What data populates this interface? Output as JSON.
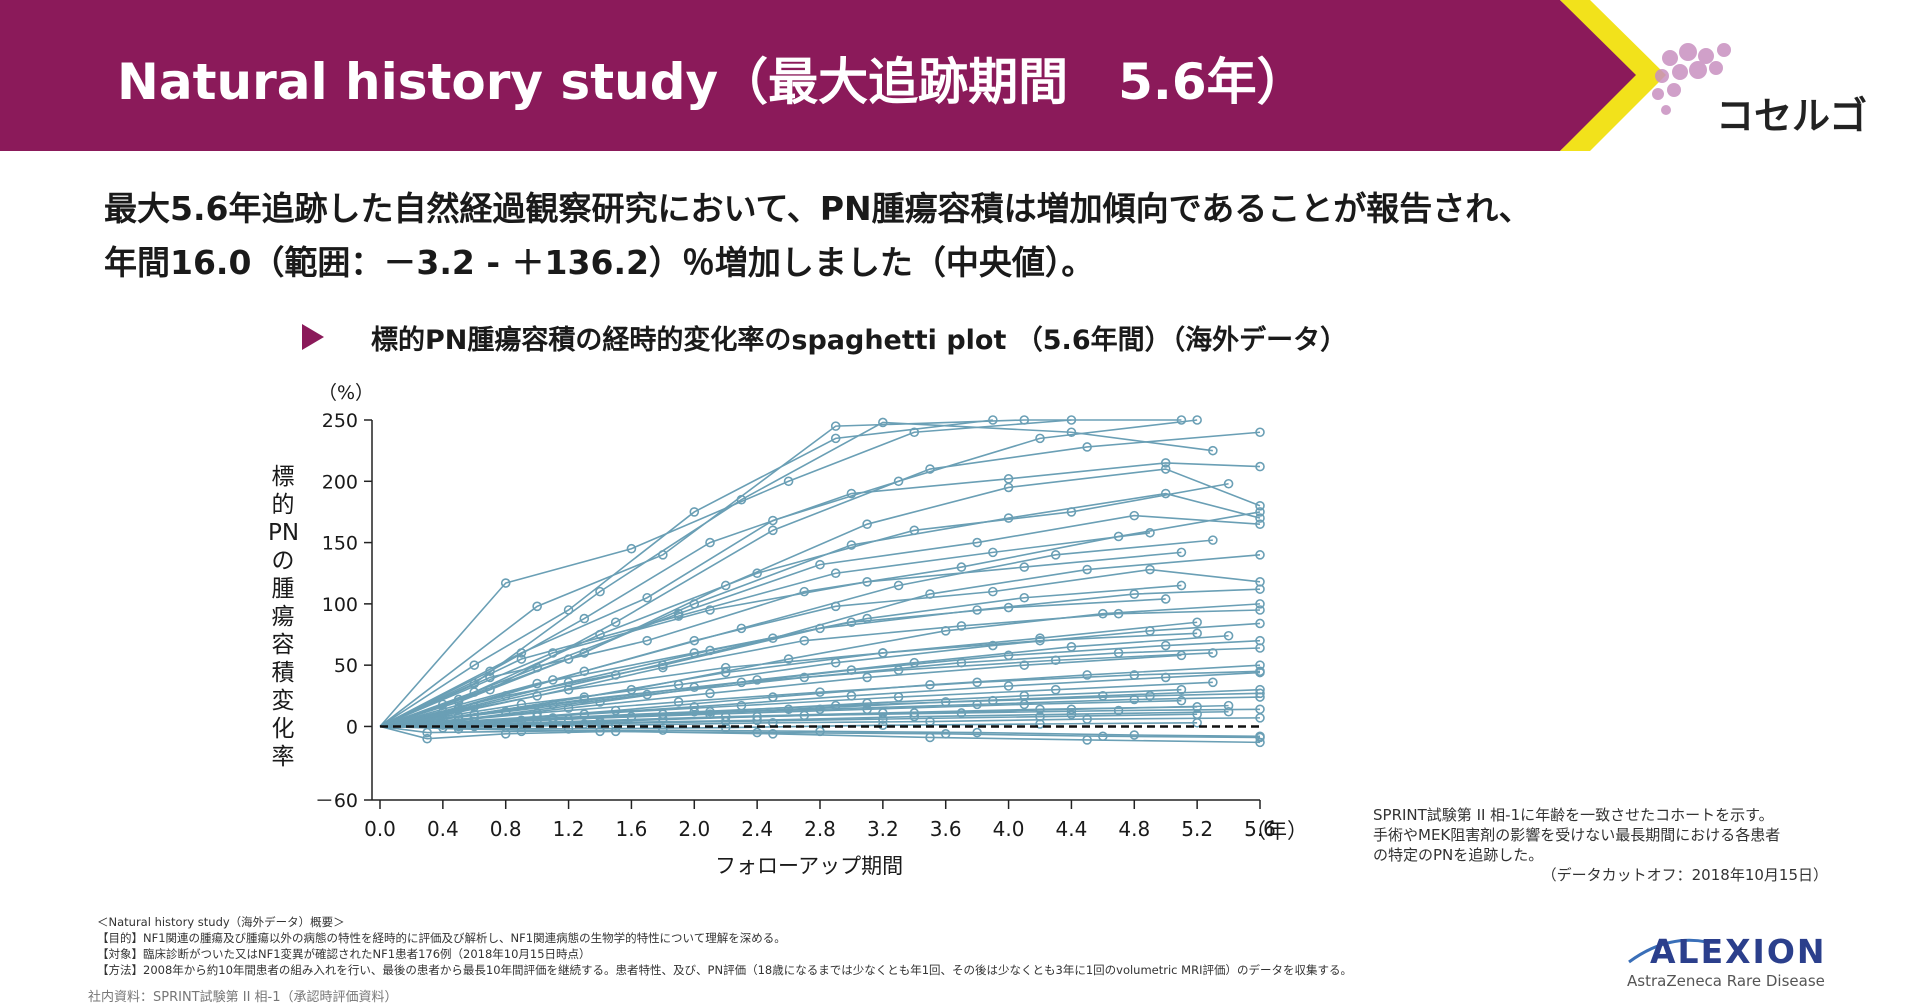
{
  "header": {
    "title": "Natural history study（最大追跡期間　5.6年）",
    "brand": "コセルゴ",
    "band_color": "#8b1a5a",
    "accent_color": "#f2e21b"
  },
  "lead": {
    "line1": "最大5.6年追跡した自然経過観察研究において、PN腫瘍容積は増加傾向であることが報告され、",
    "line2": "年間16.0（範囲：－3.2 - ＋136.2）％増加しました（中央値）。"
  },
  "chart_heading": "標的PN腫瘍容積の経時的変化率のspaghetti plot （5.6年間）（海外データ）",
  "chart_data": {
    "type": "line",
    "ylabel_chars": [
      "標",
      "的",
      "PN",
      "の",
      "腫",
      "瘍",
      "容",
      "積",
      "変",
      "化",
      "率"
    ],
    "xlabel": "フォローアップ期間",
    "y_unit": "（%）",
    "x_unit": "（年）",
    "xlim": [
      0.0,
      5.6
    ],
    "ylim": [
      -60,
      250
    ],
    "x_ticks": [
      "0.0",
      "0.4",
      "0.8",
      "1.2",
      "1.6",
      "2.0",
      "2.4",
      "2.8",
      "3.2",
      "3.6",
      "4.0",
      "4.4",
      "4.8",
      "5.2",
      "5.6"
    ],
    "y_ticks": [
      "250",
      "200",
      "150",
      "100",
      "50",
      "0",
      "－60"
    ],
    "y_tick_values": [
      250,
      200,
      150,
      100,
      50,
      0,
      -60
    ],
    "reference_line": 0,
    "series_color": "#6a9fb5",
    "series": [
      {
        "x": [
          0,
          0.8,
          1.6,
          2.6,
          3.4,
          4.4
        ],
        "y": [
          0,
          117,
          145,
          200,
          240,
          250
        ]
      },
      {
        "x": [
          0,
          1.0,
          1.8,
          2.9,
          4.1,
          5.1
        ],
        "y": [
          0,
          98,
          140,
          245,
          250,
          250
        ]
      },
      {
        "x": [
          0,
          0.6,
          1.4,
          2.3,
          3.2,
          4.4,
          5.3
        ],
        "y": [
          0,
          35,
          110,
          185,
          248,
          240,
          225
        ]
      },
      {
        "x": [
          0,
          0.7,
          1.5,
          2.5,
          3.5,
          4.5,
          5.6
        ],
        "y": [
          0,
          30,
          85,
          160,
          210,
          228,
          240
        ]
      },
      {
        "x": [
          0,
          0.5,
          1.3,
          2.2,
          3.1,
          4.0,
          5.0,
          5.6
        ],
        "y": [
          0,
          20,
          60,
          115,
          165,
          195,
          210,
          180
        ]
      },
      {
        "x": [
          0,
          0.6,
          1.4,
          2.4,
          3.4,
          4.4,
          5.4
        ],
        "y": [
          0,
          28,
          75,
          125,
          160,
          175,
          198
        ]
      },
      {
        "x": [
          0,
          0.5,
          1.2,
          2.0,
          3.0,
          4.0,
          5.0,
          5.6
        ],
        "y": [
          0,
          22,
          55,
          100,
          148,
          170,
          190,
          170
        ]
      },
      {
        "x": [
          0,
          0.4,
          1.0,
          1.9,
          2.8,
          3.8,
          4.8,
          5.6
        ],
        "y": [
          0,
          18,
          48,
          92,
          132,
          150,
          172,
          165
        ]
      },
      {
        "x": [
          0,
          0.5,
          1.3,
          2.3,
          3.3,
          4.3,
          5.3
        ],
        "y": [
          0,
          15,
          45,
          80,
          115,
          140,
          152
        ]
      },
      {
        "x": [
          0,
          0.6,
          1.5,
          2.5,
          3.5,
          4.5,
          5.6
        ],
        "y": [
          0,
          16,
          42,
          72,
          108,
          128,
          140
        ]
      },
      {
        "x": [
          0,
          0.4,
          1.1,
          2.0,
          2.9,
          3.9,
          4.9,
          5.6
        ],
        "y": [
          0,
          12,
          38,
          70,
          98,
          110,
          128,
          118
        ]
      },
      {
        "x": [
          0,
          0.5,
          1.2,
          2.1,
          3.1,
          4.1,
          5.1
        ],
        "y": [
          0,
          14,
          36,
          62,
          88,
          105,
          115
        ]
      },
      {
        "x": [
          0,
          0.6,
          1.6,
          2.6,
          3.6,
          4.6,
          5.6
        ],
        "y": [
          0,
          10,
          30,
          55,
          78,
          92,
          100
        ]
      },
      {
        "x": [
          0,
          0.4,
          1.0,
          1.8,
          2.7,
          3.7,
          4.7,
          5.6
        ],
        "y": [
          0,
          9,
          25,
          48,
          70,
          82,
          92,
          95
        ]
      },
      {
        "x": [
          0,
          0.5,
          1.3,
          2.2,
          3.2,
          4.2,
          5.2
        ],
        "y": [
          0,
          8,
          24,
          44,
          60,
          72,
          85
        ]
      },
      {
        "x": [
          0,
          0.6,
          1.4,
          2.4,
          3.4,
          4.4,
          5.4
        ],
        "y": [
          0,
          7,
          20,
          38,
          52,
          65,
          74
        ]
      },
      {
        "x": [
          0,
          0.4,
          1.1,
          2.0,
          3.0,
          4.0,
          5.0,
          5.6
        ],
        "y": [
          0,
          6,
          18,
          32,
          46,
          58,
          66,
          70
        ]
      },
      {
        "x": [
          0,
          0.5,
          1.2,
          2.1,
          3.1,
          4.1,
          5.1
        ],
        "y": [
          0,
          5,
          15,
          27,
          40,
          50,
          58
        ]
      },
      {
        "x": [
          0,
          0.6,
          1.5,
          2.5,
          3.5,
          4.5,
          5.6
        ],
        "y": [
          0,
          4,
          13,
          24,
          34,
          42,
          50
        ]
      },
      {
        "x": [
          0,
          0.4,
          1.0,
          1.9,
          2.8,
          3.8,
          4.8,
          5.6
        ],
        "y": [
          0,
          4,
          11,
          20,
          28,
          36,
          42,
          45
        ]
      },
      {
        "x": [
          0,
          0.5,
          1.3,
          2.3,
          3.3,
          4.3,
          5.3
        ],
        "y": [
          0,
          3,
          10,
          17,
          24,
          30,
          36
        ]
      },
      {
        "x": [
          0,
          0.6,
          1.6,
          2.6,
          3.6,
          4.6,
          5.6
        ],
        "y": [
          0,
          3,
          8,
          14,
          20,
          25,
          30
        ]
      },
      {
        "x": [
          0,
          0.4,
          1.1,
          2.0,
          2.9,
          3.9,
          4.9,
          5.6
        ],
        "y": [
          0,
          2,
          7,
          12,
          17,
          21,
          25,
          27
        ]
      },
      {
        "x": [
          0,
          0.5,
          1.2,
          2.1,
          3.1,
          4.1,
          5.1
        ],
        "y": [
          0,
          2,
          6,
          10,
          14,
          18,
          21
        ]
      },
      {
        "x": [
          0,
          0.6,
          1.4,
          2.4,
          3.4,
          4.4,
          5.4
        ],
        "y": [
          0,
          1,
          4,
          8,
          11,
          14,
          17
        ]
      },
      {
        "x": [
          0,
          0.4,
          1.0,
          1.8,
          2.7,
          3.7,
          4.7,
          5.6
        ],
        "y": [
          0,
          1,
          3,
          6,
          9,
          11,
          13,
          14
        ]
      },
      {
        "x": [
          0,
          0.5,
          1.3,
          2.2,
          3.2,
          4.2,
          5.2
        ],
        "y": [
          0,
          0,
          2,
          4,
          6,
          8,
          10
        ]
      },
      {
        "x": [
          0,
          0.6,
          1.5,
          2.5,
          3.5,
          4.5,
          5.6
        ],
        "y": [
          0,
          0,
          1,
          3,
          4,
          6,
          7
        ]
      },
      {
        "x": [
          0,
          0.4,
          1.2,
          2.2,
          3.2,
          4.2,
          5.2
        ],
        "y": [
          0,
          -1,
          -2,
          -1,
          1,
          2,
          3
        ]
      },
      {
        "x": [
          0,
          0.3,
          0.9,
          1.8,
          2.8,
          3.8,
          4.8,
          5.6
        ],
        "y": [
          0,
          -5,
          -4,
          -3,
          -4,
          -5,
          -7,
          -8
        ]
      },
      {
        "x": [
          0,
          0.3,
          0.8,
          1.5,
          2.5,
          3.5,
          4.5,
          5.6
        ],
        "y": [
          0,
          -10,
          -6,
          -4,
          -6,
          -9,
          -11,
          -13
        ]
      },
      {
        "x": [
          0,
          0.5,
          1.4,
          2.4,
          3.6,
          4.6,
          5.6
        ],
        "y": [
          0,
          -2,
          -4,
          -5,
          -6,
          -8,
          -9
        ]
      },
      {
        "x": [
          0,
          0.7,
          1.7,
          2.7,
          3.7,
          4.7,
          5.6
        ],
        "y": [
          0,
          40,
          70,
          110,
          130,
          155,
          175
        ]
      },
      {
        "x": [
          0,
          0.9,
          1.9,
          2.9,
          3.9,
          4.9
        ],
        "y": [
          0,
          55,
          90,
          125,
          142,
          158
        ]
      },
      {
        "x": [
          0,
          1.1,
          2.1,
          3.1,
          4.1,
          5.1
        ],
        "y": [
          0,
          60,
          95,
          118,
          130,
          142
        ]
      },
      {
        "x": [
          0,
          0.8,
          1.8,
          2.8,
          3.8,
          4.8,
          5.6
        ],
        "y": [
          0,
          25,
          50,
          80,
          95,
          108,
          112
        ]
      },
      {
        "x": [
          0,
          1.0,
          2.0,
          3.0,
          4.0,
          5.0
        ],
        "y": [
          0,
          35,
          60,
          85,
          97,
          104
        ]
      },
      {
        "x": [
          0,
          0.9,
          1.9,
          2.9,
          3.9,
          4.9,
          5.6
        ],
        "y": [
          0,
          18,
          34,
          52,
          66,
          78,
          84
        ]
      },
      {
        "x": [
          0,
          1.2,
          2.2,
          3.2,
          4.2,
          5.2
        ],
        "y": [
          0,
          30,
          48,
          60,
          70,
          76
        ]
      },
      {
        "x": [
          0,
          0.8,
          1.7,
          2.7,
          3.7,
          4.7,
          5.6
        ],
        "y": [
          0,
          12,
          26,
          40,
          52,
          60,
          64
        ]
      },
      {
        "x": [
          0,
          1.3,
          2.3,
          3.3,
          4.3,
          5.3
        ],
        "y": [
          0,
          22,
          36,
          46,
          54,
          60
        ]
      },
      {
        "x": [
          0,
          1.0,
          2.0,
          3.0,
          4.0,
          5.0,
          5.6
        ],
        "y": [
          0,
          8,
          16,
          25,
          33,
          40,
          44
        ]
      },
      {
        "x": [
          0,
          1.1,
          2.1,
          3.1,
          4.1,
          5.1
        ],
        "y": [
          0,
          6,
          12,
          19,
          25,
          30
        ]
      },
      {
        "x": [
          0,
          0.9,
          1.8,
          2.8,
          3.8,
          4.8,
          5.6
        ],
        "y": [
          0,
          5,
          10,
          14,
          18,
          22,
          24
        ]
      },
      {
        "x": [
          0,
          1.2,
          2.2,
          3.2,
          4.2,
          5.2
        ],
        "y": [
          0,
          4,
          8,
          11,
          14,
          16
        ]
      },
      {
        "x": [
          0,
          1.4,
          2.4,
          3.4,
          4.4,
          5.4
        ],
        "y": [
          0,
          3,
          5,
          8,
          10,
          12
        ]
      },
      {
        "x": [
          0,
          0.7,
          1.3,
          2.1,
          3.0,
          4.0,
          5.0,
          5.6
        ],
        "y": [
          0,
          45,
          88,
          150,
          190,
          202,
          215,
          212
        ]
      },
      {
        "x": [
          0,
          0.6,
          1.2,
          2.0,
          2.9,
          3.9
        ],
        "y": [
          0,
          50,
          95,
          175,
          235,
          250
        ]
      },
      {
        "x": [
          0,
          0.9,
          1.7,
          2.5,
          3.3,
          4.2,
          5.2
        ],
        "y": [
          0,
          60,
          105,
          168,
          200,
          235,
          250
        ]
      }
    ]
  },
  "side_note": {
    "line1": "SPRINT試験第 II 相-1に年齢を一致させたコホートを示す。",
    "line2": "手術やMEK阻害剤の影響を受けない最長期間における各患者",
    "line3": "の特定のPNを追跡した。",
    "line4": "（データカットオフ：2018年10月15日）"
  },
  "footnotes": {
    "heading": "＜Natural history study（海外データ）概要＞",
    "purpose": "【目的】NF1関連の腫瘍及び腫瘍以外の病態の特性を経時的に評価及び解析し、NF1関連病態の生物学的特性について理解を深める。",
    "subjects": "【対象】臨床診断がついた又はNF1変異が確認されたNF1患者176例（2018年10月15日時点）",
    "method": "【方法】2008年から約10年間患者の組み入れを行い、最後の患者から最長10年間評価を継続する。患者特性、及び、PN評価（18歳になるまでは少なくとも年1回、その後は少なくとも3年に1回のvolumetric MRI評価）のデータを収集する。"
  },
  "source": "社内資料：SPRINT試験第 II 相-1（承認時評価資料）",
  "alexion": {
    "name": "ALEXION",
    "sub": "AstraZeneca Rare Disease",
    "color": "#2b3f8c"
  }
}
